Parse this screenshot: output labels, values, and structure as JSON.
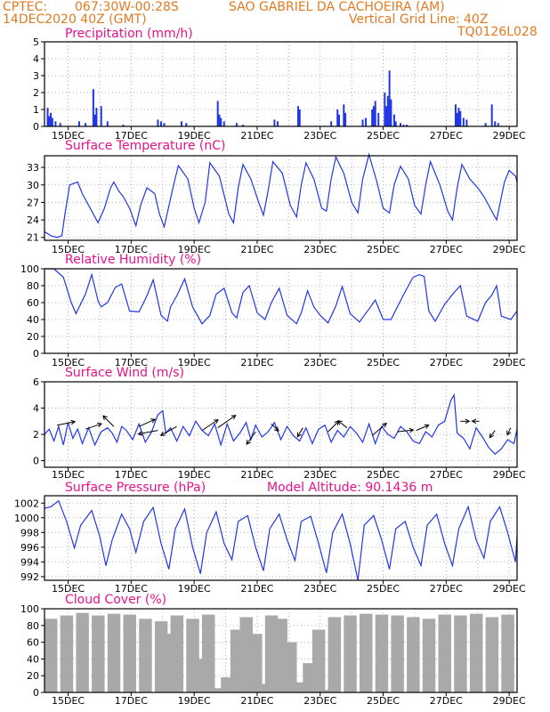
{
  "header": {
    "line1_left": "CPTEC:",
    "coords": "067:30W-00:28S",
    "location": "SAO GABRIEL DA CACHOEIRA (AM)",
    "date": "14DEC2020 40Z (GMT)",
    "grid_note": "Vertical Grid Line: 40Z",
    "run_id": "TQ0126L028"
  },
  "colors": {
    "header": "#e07a22",
    "title": "#e4138a",
    "line": "#2136e6",
    "cloud": "#a9a9a9"
  },
  "x_ticks": [
    "15DEC",
    "17DEC",
    "19DEC",
    "21DEC",
    "23DEC",
    "25DEC",
    "27DEC",
    "29DEC"
  ],
  "chart_data": [
    {
      "type": "bar",
      "title": "Precipitation (mm/h)",
      "ylim": [
        0,
        5
      ],
      "yticks": [
        "0",
        "1",
        "2",
        "3",
        "4",
        "5"
      ],
      "x_range_days": [
        14.0,
        29.0
      ],
      "x": [
        14.1,
        14.15,
        14.2,
        14.25,
        14.35,
        14.5,
        15.1,
        15.3,
        15.55,
        15.6,
        15.65,
        15.8,
        16.0,
        16.5,
        17.6,
        17.7,
        17.8,
        18.35,
        18.5,
        19.5,
        19.55,
        19.6,
        19.7,
        20.1,
        20.3,
        21.3,
        21.4,
        22.05,
        22.1,
        23.1,
        23.3,
        23.35,
        23.5,
        23.55,
        24.1,
        24.2,
        24.4,
        24.45,
        24.5,
        24.6,
        24.8,
        24.85,
        24.9,
        24.95,
        25.0,
        25.1,
        25.15,
        25.3,
        25.4,
        25.5,
        27.05,
        27.1,
        27.15,
        27.2,
        27.3,
        27.4,
        28.0,
        28.2,
        28.3,
        28.4
      ],
      "values": [
        1.1,
        0.6,
        0.8,
        0.5,
        0.3,
        0.2,
        0.3,
        0.2,
        2.2,
        0.7,
        1.1,
        1.2,
        0.3,
        0.1,
        0.4,
        0.3,
        0.2,
        0.3,
        0.2,
        1.5,
        0.7,
        0.5,
        0.3,
        0.2,
        0.1,
        0.4,
        0.3,
        1.2,
        1.0,
        0.3,
        1.0,
        0.7,
        1.3,
        0.8,
        0.4,
        0.5,
        1.0,
        1.2,
        1.5,
        0.8,
        2.0,
        1.2,
        1.8,
        3.3,
        1.6,
        0.7,
        0.3,
        0.2,
        0.1,
        0.1,
        1.3,
        0.8,
        1.1,
        0.9,
        0.5,
        0.4,
        0.2,
        1.3,
        0.3,
        0.2
      ]
    },
    {
      "type": "line",
      "title": "Surface Temperature (nC)",
      "ylim": [
        20.5,
        35
      ],
      "yticks": [
        "21",
        "24",
        "27",
        "30",
        "33"
      ],
      "x_range_days": [
        14.0,
        29.0
      ],
      "x": [
        14.0,
        14.2,
        14.4,
        14.55,
        14.65,
        14.8,
        15.05,
        15.2,
        15.5,
        15.7,
        15.9,
        16.1,
        16.2,
        16.35,
        16.5,
        16.7,
        16.9,
        17.05,
        17.25,
        17.5,
        17.65,
        17.8,
        18.1,
        18.25,
        18.55,
        18.75,
        18.9,
        19.1,
        19.25,
        19.55,
        19.85,
        20.0,
        20.15,
        20.3,
        20.55,
        20.8,
        20.95,
        21.1,
        21.25,
        21.55,
        21.8,
        22.0,
        22.15,
        22.3,
        22.55,
        22.8,
        22.95,
        23.1,
        23.25,
        23.5,
        23.75,
        23.95,
        24.1,
        24.3,
        24.55,
        24.75,
        24.95,
        25.1,
        25.3,
        25.55,
        25.75,
        25.95,
        26.1,
        26.25,
        26.55,
        26.8,
        26.95,
        27.1,
        27.25,
        27.5,
        27.75,
        27.95,
        28.15,
        28.35,
        28.6,
        28.75,
        28.95,
        29.0
      ],
      "values": [
        22,
        21.3,
        21,
        21.3,
        25,
        30,
        30.5,
        28.5,
        25.5,
        23.5,
        26,
        29.5,
        30.5,
        29,
        28,
        26,
        23,
        26.5,
        29.5,
        28.5,
        25,
        22.8,
        30,
        33.3,
        31,
        26,
        23.5,
        27,
        33.8,
        31.5,
        25,
        23.5,
        29.5,
        33.5,
        31,
        27,
        24.8,
        29,
        34,
        32,
        26.5,
        24.5,
        30,
        33.8,
        31,
        26,
        25.5,
        31,
        34.8,
        32,
        27,
        25.2,
        31,
        35.2,
        30.5,
        26,
        25.2,
        30,
        33.2,
        31,
        26.5,
        25,
        30,
        34,
        30,
        25.5,
        24,
        29.5,
        33.5,
        31,
        29.5,
        28,
        26,
        24,
        30.5,
        32.5,
        31.5,
        30.5
      ]
    },
    {
      "type": "line",
      "title": "Relative Humidity (%)",
      "ylim": [
        0,
        100
      ],
      "yticks": [
        "0",
        "20",
        "40",
        "60",
        "80",
        "100"
      ],
      "x_range_days": [
        14.0,
        29.0
      ],
      "x": [
        14.0,
        14.3,
        14.6,
        14.85,
        15.0,
        15.3,
        15.5,
        15.7,
        15.8,
        16.0,
        16.25,
        16.45,
        16.7,
        17.0,
        17.25,
        17.45,
        17.7,
        17.9,
        18.0,
        18.2,
        18.45,
        18.7,
        19.0,
        19.25,
        19.45,
        19.7,
        19.95,
        20.1,
        20.3,
        20.5,
        20.75,
        21.0,
        21.2,
        21.45,
        21.7,
        22.0,
        22.15,
        22.35,
        22.55,
        22.75,
        23.0,
        23.25,
        23.45,
        23.7,
        24.0,
        24.15,
        24.35,
        24.5,
        24.75,
        25.0,
        25.2,
        25.45,
        25.7,
        25.9,
        26.05,
        26.2,
        26.4,
        26.7,
        27.0,
        27.2,
        27.4,
        27.75,
        28.0,
        28.2,
        28.35,
        28.5,
        28.8,
        29.0
      ],
      "values": [
        100,
        100,
        90,
        60,
        47,
        70,
        93,
        62,
        55,
        60,
        78,
        82,
        50,
        49,
        68,
        87,
        45,
        38,
        55,
        68,
        88,
        55,
        35,
        45,
        70,
        77,
        48,
        42,
        72,
        80,
        48,
        40,
        60,
        77,
        45,
        35,
        48,
        74,
        55,
        45,
        36,
        56,
        79,
        47,
        37,
        45,
        55,
        63,
        40,
        40,
        55,
        73,
        90,
        93,
        91,
        50,
        38,
        58,
        72,
        80,
        44,
        38,
        60,
        69,
        80,
        44,
        40,
        50
      ]
    },
    {
      "type": "line",
      "title": "Surface Wind (m/s)",
      "ylim": [
        -0.5,
        6
      ],
      "yticks": [
        "0",
        "2",
        "4",
        "6"
      ],
      "x_range_days": [
        14.0,
        29.0
      ],
      "x": [
        14.0,
        14.15,
        14.3,
        14.45,
        14.6,
        14.75,
        14.9,
        15.05,
        15.2,
        15.4,
        15.6,
        15.8,
        16.0,
        16.15,
        16.3,
        16.45,
        16.6,
        16.8,
        17.0,
        17.2,
        17.4,
        17.6,
        17.75,
        17.85,
        18.0,
        18.2,
        18.4,
        18.6,
        18.8,
        19.0,
        19.2,
        19.4,
        19.6,
        19.8,
        20.0,
        20.2,
        20.4,
        20.55,
        20.7,
        20.9,
        21.1,
        21.3,
        21.5,
        21.7,
        21.9,
        22.1,
        22.3,
        22.5,
        22.7,
        22.9,
        23.1,
        23.3,
        23.5,
        23.7,
        23.9,
        24.1,
        24.3,
        24.5,
        24.7,
        24.9,
        25.1,
        25.3,
        25.5,
        25.7,
        25.9,
        26.1,
        26.3,
        26.5,
        26.7,
        26.9,
        27.0,
        27.1,
        27.3,
        27.5,
        27.7,
        27.9,
        28.1,
        28.3,
        28.5,
        28.7,
        28.9,
        29.0
      ],
      "values": [
        2.0,
        2.4,
        1.5,
        2.6,
        1.2,
        2.9,
        1.7,
        2.4,
        1.3,
        2.5,
        1.2,
        2.2,
        2.5,
        2.1,
        1.4,
        2.6,
        2.3,
        1.6,
        2.8,
        1.4,
        2.2,
        3.5,
        3.8,
        2.1,
        2.5,
        1.5,
        2.6,
        1.9,
        3.0,
        2.3,
        1.9,
        2.8,
        1.2,
        2.8,
        1.5,
        2.1,
        2.9,
        1.6,
        2.7,
        1.8,
        2.2,
        2.9,
        1.6,
        2.6,
        1.9,
        1.5,
        2.5,
        1.3,
        2.4,
        2.7,
        1.4,
        2.3,
        1.8,
        2.6,
        2.1,
        1.4,
        2.8,
        1.3,
        2.6,
        2.0,
        1.7,
        2.6,
        2.2,
        1.5,
        1.3,
        2.2,
        1.8,
        2.7,
        3.0,
        4.6,
        5.0,
        2.1,
        1.7,
        0.9,
        2.5,
        1.8,
        1.0,
        0.5,
        0.9,
        1.6,
        1.3,
        2.4
      ]
    },
    {
      "type": "line",
      "title": "Surface Pressure (hPa)",
      "annotation": "Model Altitude: 90.1436 m",
      "ylim": [
        991.5,
        1003
      ],
      "yticks": [
        "992",
        "994",
        "996",
        "998",
        "1000",
        "1002"
      ],
      "x_range_days": [
        14.0,
        29.0
      ],
      "x": [
        14.0,
        14.2,
        14.45,
        14.7,
        14.95,
        15.15,
        15.5,
        15.75,
        15.95,
        16.15,
        16.45,
        16.7,
        16.9,
        17.15,
        17.45,
        17.7,
        17.95,
        18.15,
        18.45,
        18.7,
        18.95,
        19.15,
        19.45,
        19.7,
        19.95,
        20.15,
        20.45,
        20.7,
        20.95,
        21.15,
        21.45,
        21.7,
        21.95,
        22.15,
        22.45,
        22.7,
        22.95,
        23.15,
        23.45,
        23.7,
        23.95,
        24.15,
        24.45,
        24.7,
        24.95,
        25.15,
        25.45,
        25.7,
        25.95,
        26.15,
        26.45,
        26.7,
        26.95,
        27.15,
        27.45,
        27.7,
        27.95,
        28.15,
        28.45,
        28.7,
        28.95,
        29.0
      ],
      "values": [
        1001.3,
        1001.5,
        1002.3,
        999.5,
        995.9,
        999,
        1001,
        997.5,
        993.5,
        997,
        1000.5,
        998.5,
        995.3,
        999.5,
        1001.4,
        996.5,
        993,
        998.5,
        1001.2,
        996,
        992.4,
        998,
        1000.8,
        996.5,
        994.3,
        999.5,
        1000.3,
        996,
        992.8,
        998.5,
        1000.5,
        997,
        994.2,
        999.5,
        1000.2,
        996.5,
        992.5,
        998,
        1000.5,
        996.5,
        991.5,
        999,
        1000.3,
        997,
        993,
        998.5,
        999.5,
        996,
        993.5,
        999,
        1000.5,
        996.5,
        993.5,
        998.5,
        1001.5,
        997,
        994.5,
        999.5,
        1001.5,
        998,
        994,
        997.5
      ]
    },
    {
      "type": "bar",
      "title": "Cloud Cover (%)",
      "ylim": [
        0,
        100
      ],
      "yticks": [
        "0",
        "20",
        "40",
        "60",
        "80",
        "100"
      ],
      "x_range_days": [
        14.0,
        29.0
      ],
      "x": [
        14.0,
        14.5,
        15.0,
        15.5,
        16.0,
        16.5,
        17.0,
        17.5,
        17.9,
        18.0,
        18.5,
        18.8,
        19.0,
        19.3,
        19.6,
        19.9,
        20.2,
        20.5,
        20.7,
        21.0,
        21.3,
        21.6,
        21.9,
        22.2,
        22.5,
        22.8,
        23.0,
        23.5,
        24.0,
        24.5,
        25.0,
        25.5,
        26.0,
        26.5,
        27.0,
        27.5,
        28.0,
        28.5,
        29.0
      ],
      "values": [
        88,
        92,
        95,
        92,
        94,
        93,
        88,
        85,
        70,
        92,
        88,
        40,
        93,
        5,
        18,
        75,
        90,
        70,
        10,
        92,
        88,
        60,
        12,
        35,
        75,
        3,
        90,
        92,
        94,
        93,
        92,
        90,
        88,
        93,
        92,
        94,
        90,
        93,
        95
      ]
    }
  ]
}
